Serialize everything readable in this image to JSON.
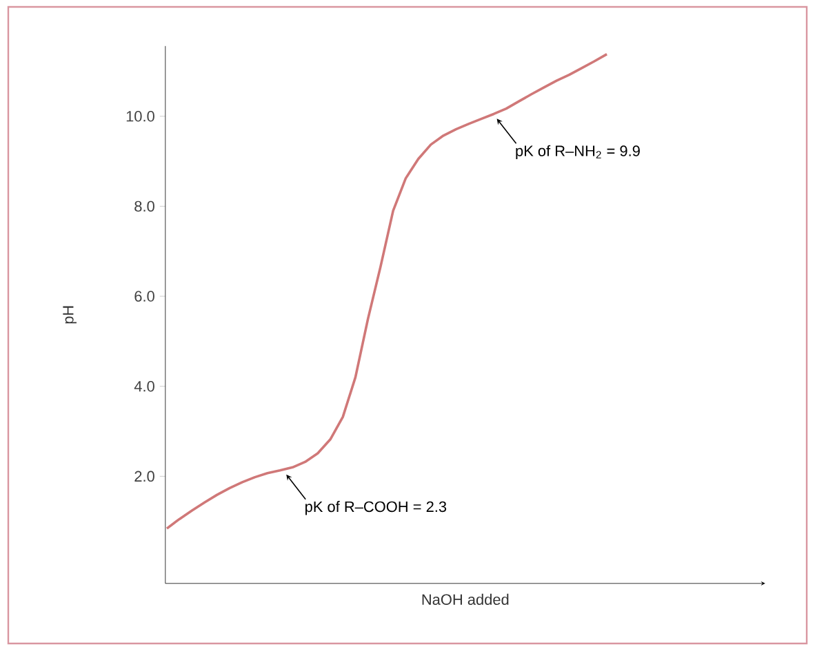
{
  "chart_data": {
    "type": "line",
    "xlabel": "NaOH added",
    "ylabel": "pH",
    "categories": [
      null,
      null,
      null,
      null,
      null,
      null,
      null,
      null,
      null,
      null,
      null,
      null,
      null,
      null,
      null,
      null,
      null,
      null,
      null,
      null,
      null,
      null,
      null,
      null,
      null,
      null,
      null,
      null,
      null,
      null,
      null,
      null,
      null,
      null,
      null,
      null
    ],
    "values": [
      0.84,
      1.05,
      1.24,
      1.42,
      1.59,
      1.74,
      1.87,
      1.98,
      2.07,
      2.13,
      2.2,
      2.32,
      2.51,
      2.82,
      3.32,
      4.2,
      5.5,
      6.66,
      7.9,
      8.62,
      9.05,
      9.37,
      9.57,
      9.71,
      9.83,
      9.94,
      10.05,
      10.17,
      10.33,
      10.49,
      10.64,
      10.79,
      10.92,
      11.07,
      11.22,
      11.38
    ],
    "color": "#d07878",
    "ylim": [
      -0.38,
      11.56
    ],
    "yticks": [
      {
        "value": 2,
        "label": "2.0"
      },
      {
        "value": 4,
        "label": "4.0"
      },
      {
        "value": 6,
        "label": "6.0"
      },
      {
        "value": 8,
        "label": "8.0"
      },
      {
        "value": 10,
        "label": "10.0"
      }
    ],
    "tick_labels": "y",
    "annotations": [
      "pK of R–COOH = 2.3",
      "pK of R–NH$_{2}$ = 9.9"
    ]
  }
}
